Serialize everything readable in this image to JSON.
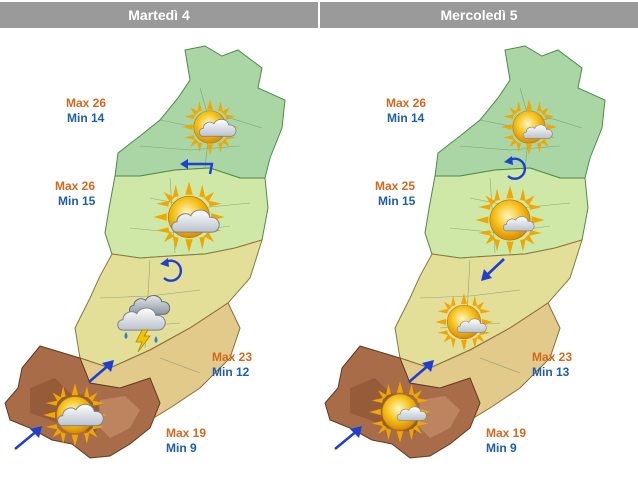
{
  "panels": [
    {
      "day": "Martedì 4",
      "temps": [
        {
          "max": "Max 26",
          "min": "Min 14"
        },
        {
          "max": "Max 26",
          "min": "Min 15"
        },
        {
          "max": "Max 23",
          "min": "Min 12"
        },
        {
          "max": "Max 19",
          "min": "Min 9"
        }
      ]
    },
    {
      "day": "Mercoledì 5",
      "temps": [
        {
          "max": "Max 26",
          "min": "Min 14"
        },
        {
          "max": "Max 25",
          "min": "Min 15"
        },
        {
          "max": "Max 23",
          "min": "Min 13"
        },
        {
          "max": "Max 19",
          "min": "Min 9"
        }
      ]
    }
  ],
  "icons": {
    "p1": [
      "sun-cloud-icon",
      "sun-cloud-icon",
      "thunderstorm-icon",
      "sun-cloud-icon"
    ],
    "p2": [
      "sun-cloud-icon",
      "sun-cloud-icon",
      "sun-cloud-icon",
      "sun-cloud-icon"
    ],
    "wind_p1": [
      "wind-west-icon",
      "wind-variable-icon",
      "wind-northeast-icon",
      "wind-northeast-icon"
    ],
    "wind_p2": [
      "wind-variable-icon",
      "wind-southwest-icon",
      "wind-northeast-icon",
      "wind-northeast-icon"
    ]
  },
  "colors": {
    "header_bg": "#9a9a9a",
    "max": "#d2691e",
    "min": "#1f5fa8",
    "wind": "#1f3fd0"
  }
}
